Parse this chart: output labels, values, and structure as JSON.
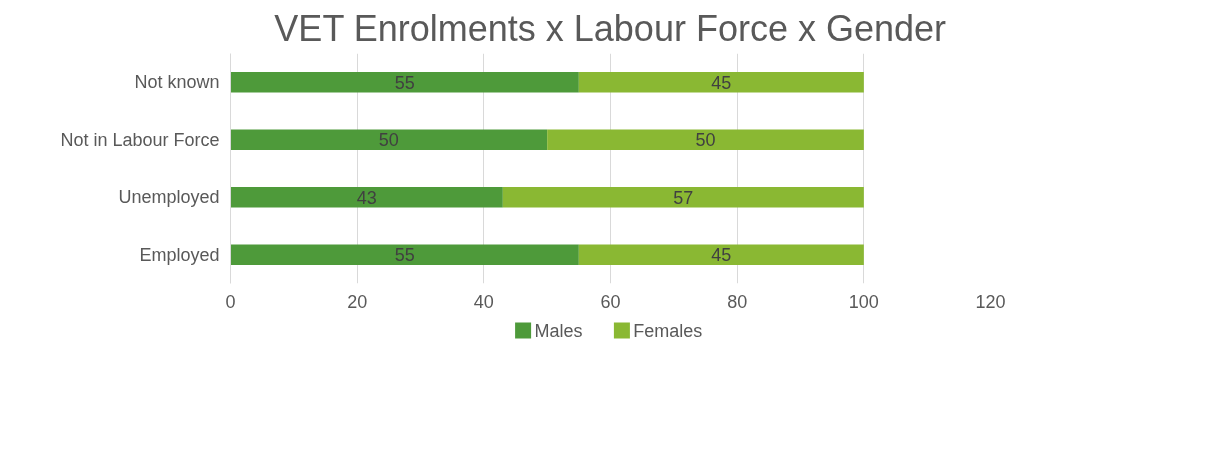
{
  "chart_data": {
    "type": "bar",
    "orientation": "horizontal",
    "stacked": true,
    "title": "VET Enrolments x Labour Force x Gender",
    "categories": [
      "Not known",
      "Not in Labour Force",
      "Unemployed",
      "Employed"
    ],
    "series": [
      {
        "name": "Males",
        "color": "#4e9a3a",
        "values": [
          55,
          50,
          43,
          55
        ]
      },
      {
        "name": "Females",
        "color": "#8ab833",
        "values": [
          45,
          50,
          57,
          45
        ]
      }
    ],
    "xlim": [
      0,
      120
    ],
    "xticks": [
      0,
      20,
      40,
      60,
      80,
      100,
      120
    ],
    "grid": "x",
    "legend": "bottom",
    "data_labels": true
  }
}
